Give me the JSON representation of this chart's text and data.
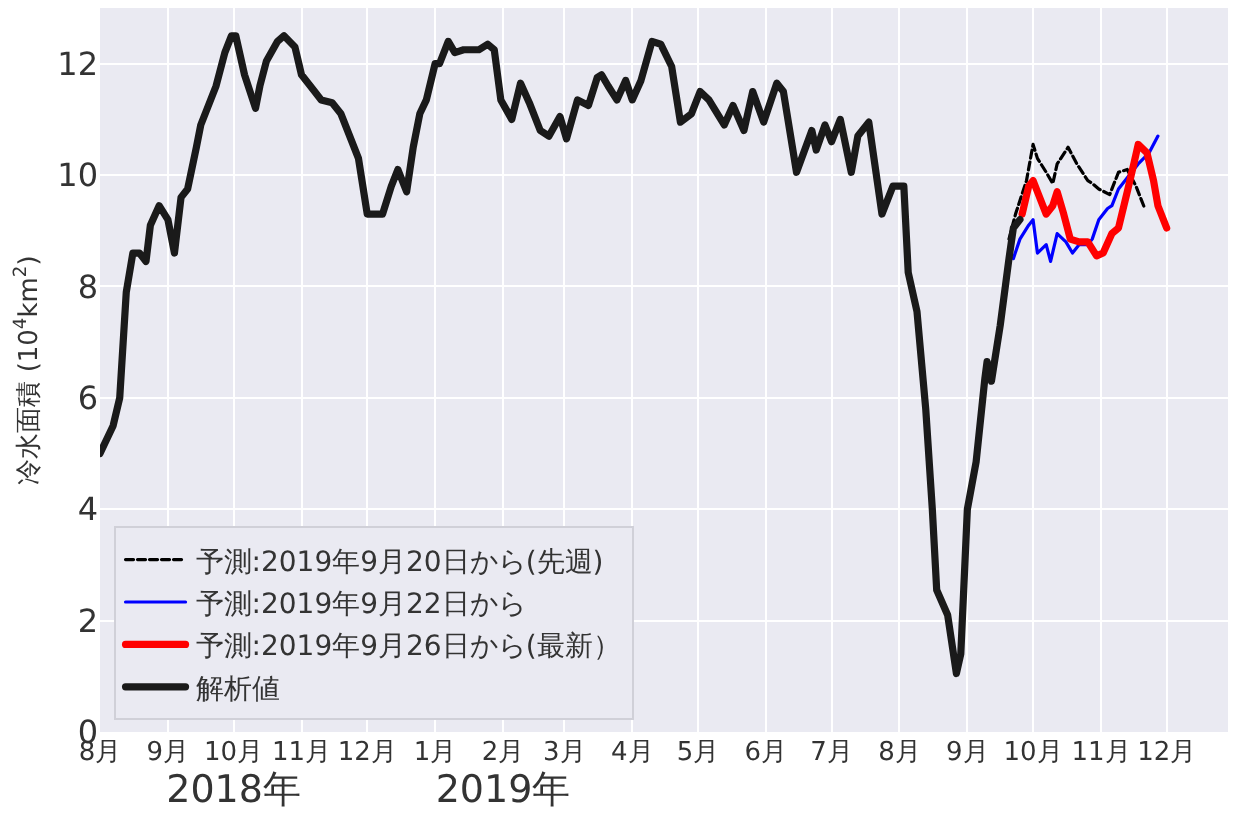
{
  "chart_data": {
    "type": "line",
    "ylabel": "冷水面積 (10$^{4}$km$^{2}$)",
    "xlim": [
      "2018-08-01",
      "2019-12-29"
    ],
    "xticks": [
      {
        "value": "2018-08-01",
        "label": "8月"
      },
      {
        "value": "2018-09-01",
        "label": "9月"
      },
      {
        "value": "2018-10-01",
        "label": "10月"
      },
      {
        "value": "2018-11-01",
        "label": "11月"
      },
      {
        "value": "2018-12-01",
        "label": "12月"
      },
      {
        "value": "2019-01-01",
        "label": "1月"
      },
      {
        "value": "2019-02-01",
        "label": "2月"
      },
      {
        "value": "2019-03-01",
        "label": "3月"
      },
      {
        "value": "2019-04-01",
        "label": "4月"
      },
      {
        "value": "2019-05-01",
        "label": "5月"
      },
      {
        "value": "2019-06-01",
        "label": "6月"
      },
      {
        "value": "2019-07-01",
        "label": "7月"
      },
      {
        "value": "2019-08-01",
        "label": "8月"
      },
      {
        "value": "2019-09-01",
        "label": "9月"
      },
      {
        "value": "2019-10-01",
        "label": "10月"
      },
      {
        "value": "2019-11-01",
        "label": "11月"
      },
      {
        "value": "2019-12-01",
        "label": "12月"
      }
    ],
    "x2lim": [
      "2018-08-01",
      "2019-12-29"
    ],
    "x2ticks": [
      {
        "value": "2018-10-01",
        "label": "2018年"
      },
      {
        "value": "2019-02-01",
        "label": "2019年"
      }
    ],
    "ylim": [
      0,
      13
    ],
    "yticks": [
      0,
      2,
      4,
      6,
      8,
      10,
      12
    ],
    "grid": true,
    "legend": "bottom left",
    "series": [
      {
        "name": "予測:2019年9月20日から(先週)",
        "color": "#000000",
        "line_style": "dashed",
        "x": [
          "2019-09-20",
          "2019-09-23",
          "2019-09-28",
          "2019-10-01",
          "2019-10-03",
          "2019-10-07",
          "2019-10-10",
          "2019-10-12",
          "2019-10-17",
          "2019-10-21",
          "2019-10-26",
          "2019-10-28",
          "2019-10-31",
          "2019-11-05",
          "2019-11-09",
          "2019-11-13",
          "2019-11-17",
          "2019-11-21"
        ],
        "values": [
          8.85,
          9.3,
          9.9,
          10.55,
          10.3,
          10.05,
          9.85,
          10.2,
          10.5,
          10.2,
          9.9,
          9.85,
          9.75,
          9.65,
          10.05,
          10.1,
          9.8,
          9.4
        ]
      },
      {
        "name": "予測:2019年9月22日から",
        "color": "#0000ff",
        "line_style": "solid",
        "x": [
          "2019-09-22",
          "2019-09-25",
          "2019-09-29",
          "2019-10-01",
          "2019-10-03",
          "2019-10-07",
          "2019-10-09",
          "2019-10-12",
          "2019-10-16",
          "2019-10-19",
          "2019-10-22",
          "2019-10-26",
          "2019-10-28",
          "2019-10-31",
          "2019-11-04",
          "2019-11-06",
          "2019-11-09",
          "2019-11-14",
          "2019-11-18",
          "2019-11-23",
          "2019-11-27"
        ],
        "values": [
          8.5,
          8.85,
          9.1,
          9.2,
          8.6,
          8.75,
          8.45,
          8.95,
          8.8,
          8.6,
          8.75,
          8.75,
          8.85,
          9.2,
          9.4,
          9.45,
          9.75,
          10.0,
          10.2,
          10.4,
          10.7
        ]
      },
      {
        "name": "予測:2019年9月26日から(最新）",
        "color": "#ff0000",
        "line_style": "solid",
        "x": [
          "2019-09-26",
          "2019-09-29",
          "2019-10-01",
          "2019-10-03",
          "2019-10-07",
          "2019-10-10",
          "2019-10-12",
          "2019-10-15",
          "2019-10-18",
          "2019-10-22",
          "2019-10-26",
          "2019-10-30",
          "2019-11-02",
          "2019-11-06",
          "2019-11-09",
          "2019-11-13",
          "2019-11-16",
          "2019-11-18",
          "2019-11-22",
          "2019-11-25",
          "2019-11-27",
          "2019-12-01"
        ],
        "values": [
          9.3,
          9.8,
          9.9,
          9.7,
          9.3,
          9.45,
          9.7,
          9.3,
          8.85,
          8.8,
          8.8,
          8.55,
          8.6,
          8.95,
          9.05,
          9.7,
          10.2,
          10.55,
          10.4,
          9.9,
          9.45,
          9.05
        ]
      },
      {
        "name": "解析値",
        "color": "#1a1a1a",
        "line_style": "solid",
        "x": [
          "2018-08-01",
          "2018-08-07",
          "2018-08-10",
          "2018-08-13",
          "2018-08-16",
          "2018-08-19",
          "2018-08-22",
          "2018-08-24",
          "2018-08-28",
          "2018-09-01",
          "2018-09-04",
          "2018-09-07",
          "2018-09-10",
          "2018-09-14",
          "2018-09-16",
          "2018-09-23",
          "2018-09-27",
          "2018-09-30",
          "2018-10-02",
          "2018-10-06",
          "2018-10-11",
          "2018-10-13",
          "2018-10-16",
          "2018-10-21",
          "2018-10-24",
          "2018-10-29",
          "2018-11-01",
          "2018-11-07",
          "2018-11-10",
          "2018-11-15",
          "2018-11-19",
          "2018-11-24",
          "2018-11-27",
          "2018-12-01",
          "2018-12-05",
          "2018-12-08",
          "2018-12-12",
          "2018-12-15",
          "2018-12-19",
          "2018-12-22",
          "2018-12-25",
          "2018-12-28",
          "2019-01-01",
          "2019-01-03",
          "2019-01-07",
          "2019-01-10",
          "2019-01-14",
          "2019-01-21",
          "2019-01-25",
          "2019-01-28",
          "2019-01-31",
          "2019-02-05",
          "2019-02-09",
          "2019-02-13",
          "2019-02-18",
          "2019-02-22",
          "2019-02-27",
          "2019-03-02",
          "2019-03-07",
          "2019-03-12",
          "2019-03-16",
          "2019-03-18",
          "2019-03-21",
          "2019-03-25",
          "2019-03-29",
          "2019-04-01",
          "2019-04-05",
          "2019-04-10",
          "2019-04-14",
          "2019-04-19",
          "2019-04-23",
          "2019-04-28",
          "2019-05-02",
          "2019-05-06",
          "2019-05-13",
          "2019-05-17",
          "2019-05-22",
          "2019-05-26",
          "2019-05-31",
          "2019-06-06",
          "2019-06-09",
          "2019-06-15",
          "2019-06-22",
          "2019-06-24",
          "2019-06-28",
          "2019-07-01",
          "2019-07-05",
          "2019-07-10",
          "2019-07-13",
          "2019-07-18",
          "2019-07-24",
          "2019-07-29",
          "2019-08-03",
          "2019-08-05",
          "2019-08-09",
          "2019-08-13",
          "2019-08-16",
          "2019-08-18",
          "2019-08-23",
          "2019-08-27",
          "2019-08-29",
          "2019-09-01",
          "2019-09-05",
          "2019-09-09",
          "2019-09-10",
          "2019-09-12",
          "2019-09-16",
          "2019-09-20",
          "2019-09-22",
          "2019-09-25"
        ],
        "values": [
          5.0,
          5.5,
          6.0,
          7.9,
          8.6,
          8.6,
          8.45,
          9.1,
          9.45,
          9.2,
          8.6,
          9.6,
          9.75,
          10.5,
          10.9,
          11.6,
          12.2,
          12.5,
          12.5,
          11.8,
          11.2,
          11.6,
          12.05,
          12.4,
          12.5,
          12.3,
          11.8,
          11.5,
          11.35,
          11.3,
          11.1,
          10.6,
          10.3,
          9.3,
          9.3,
          9.3,
          9.8,
          10.1,
          9.7,
          10.5,
          11.1,
          11.35,
          12.0,
          12.0,
          12.4,
          12.2,
          12.25,
          12.25,
          12.35,
          12.25,
          11.35,
          11.0,
          11.65,
          11.3,
          10.8,
          10.7,
          11.05,
          10.65,
          11.35,
          11.25,
          11.75,
          11.8,
          11.6,
          11.35,
          11.7,
          11.35,
          11.7,
          12.4,
          12.35,
          11.95,
          10.95,
          11.1,
          11.5,
          11.35,
          10.9,
          11.25,
          10.8,
          11.5,
          10.95,
          11.65,
          11.5,
          10.05,
          10.8,
          10.45,
          10.9,
          10.6,
          11.0,
          10.05,
          10.7,
          10.95,
          9.3,
          9.8,
          9.8,
          8.25,
          7.55,
          5.8,
          4.0,
          2.55,
          2.1,
          1.05,
          1.4,
          4.0,
          4.85,
          6.35,
          6.65,
          6.3,
          7.3,
          8.5,
          9.05,
          9.2
        ]
      }
    ]
  }
}
